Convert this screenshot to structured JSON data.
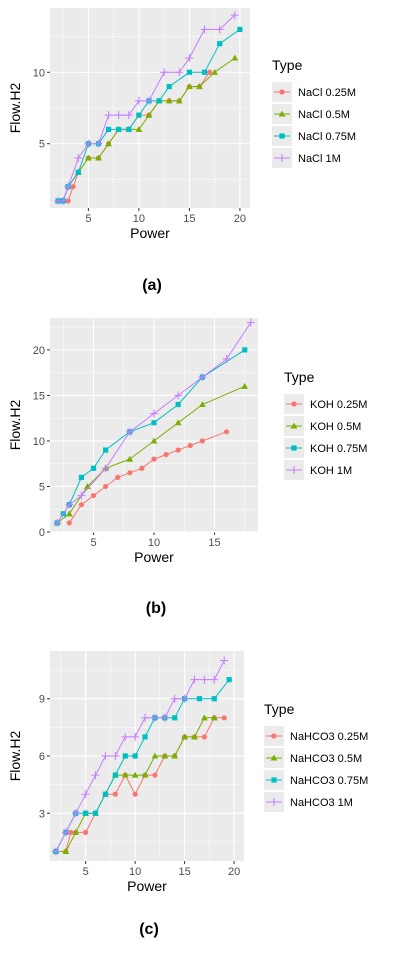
{
  "chart_data": [
    {
      "type": "line",
      "caption": "(a)",
      "xlabel": "Power",
      "ylabel": "Flow.H2",
      "legend_title": "Type",
      "legend_position": "right",
      "xlim": [
        1.2,
        21
      ],
      "ylim": [
        0.5,
        14.5
      ],
      "xticks": [
        5,
        10,
        15,
        20
      ],
      "yticks": [
        5,
        10
      ],
      "series": [
        {
          "name": "NaCl 0.25M",
          "color": "#F8766D",
          "marker": "circle",
          "x": [
            2,
            2.5,
            3,
            3.5,
            4,
            5,
            6,
            7,
            8,
            9,
            10,
            11,
            12,
            13,
            14,
            15,
            16,
            17
          ],
          "y": [
            1,
            1,
            1,
            2,
            3,
            4,
            4,
            5,
            6,
            6,
            7,
            7,
            8,
            8,
            8,
            9,
            9,
            10
          ]
        },
        {
          "name": "NaCl 0.5M",
          "color": "#7CAE00",
          "marker": "triangle",
          "x": [
            2,
            2.5,
            3,
            4,
            5,
            6,
            7,
            8,
            9,
            10,
            11,
            12,
            13,
            14,
            15,
            16,
            17.5,
            19.5
          ],
          "y": [
            1,
            1,
            2,
            3,
            4,
            4,
            5,
            6,
            6,
            6,
            7,
            8,
            8,
            8,
            9,
            9,
            10,
            11
          ]
        },
        {
          "name": "NaCl 0.75M",
          "color": "#00BFC4",
          "marker": "square",
          "x": [
            2,
            2.5,
            3,
            4,
            5,
            6,
            7,
            8,
            9,
            10,
            11,
            12,
            13,
            15,
            16.5,
            18,
            20
          ],
          "y": [
            1,
            1,
            2,
            3,
            5,
            5,
            6,
            6,
            6,
            7,
            8,
            8,
            9,
            10,
            10,
            12,
            13
          ]
        },
        {
          "name": "NaCl 1M",
          "color": "#C77CFF",
          "marker": "plus",
          "x": [
            2,
            2.5,
            3,
            4,
            5,
            6,
            7,
            8,
            9,
            10,
            11,
            12.5,
            14,
            15,
            16.5,
            18,
            19.5
          ],
          "y": [
            1,
            1,
            2,
            4,
            5,
            5,
            7,
            7,
            7,
            8,
            8,
            10,
            10,
            11,
            13,
            13,
            14
          ]
        }
      ]
    },
    {
      "type": "line",
      "caption": "(b)",
      "xlabel": "Power",
      "ylabel": "Flow.H2",
      "legend_title": "Type",
      "legend_position": "right",
      "xlim": [
        1.4,
        18.6
      ],
      "ylim": [
        0,
        23.5
      ],
      "xticks": [
        5,
        10,
        15
      ],
      "yticks": [
        0,
        5,
        10,
        15,
        20
      ],
      "series": [
        {
          "name": "KOH 0.25M",
          "color": "#F8766D",
          "marker": "circle",
          "x": [
            3,
            4,
            5,
            6,
            7,
            8,
            9,
            10,
            11,
            12,
            13,
            14,
            16
          ],
          "y": [
            1,
            3,
            4,
            5,
            6,
            6.5,
            7,
            8,
            8.5,
            9,
            9.5,
            10,
            11
          ]
        },
        {
          "name": "KOH 0.5M",
          "color": "#7CAE00",
          "marker": "triangle",
          "x": [
            2,
            3,
            4.5,
            6,
            8,
            10,
            12,
            14,
            17.5
          ],
          "y": [
            1,
            2,
            5,
            7,
            8,
            10,
            12,
            14,
            16
          ]
        },
        {
          "name": "KOH 0.75M",
          "color": "#00BFC4",
          "marker": "square",
          "x": [
            2,
            2.5,
            3,
            4,
            5,
            6,
            8,
            10,
            12,
            14,
            17.5
          ],
          "y": [
            1,
            2,
            3,
            6,
            7,
            9,
            11,
            12,
            14,
            17,
            20
          ]
        },
        {
          "name": "KOH 1M",
          "color": "#C77CFF",
          "marker": "plus",
          "x": [
            2,
            3,
            4,
            6,
            8,
            10,
            12,
            14,
            16,
            18
          ],
          "y": [
            1,
            3,
            4,
            7,
            11,
            13,
            15,
            17,
            19,
            23
          ]
        }
      ]
    },
    {
      "type": "line",
      "caption": "(c)",
      "xlabel": "Power",
      "ylabel": "Flow.H2",
      "legend_title": "Type",
      "legend_position": "right",
      "xlim": [
        1.4,
        21
      ],
      "ylim": [
        0.5,
        11.5
      ],
      "xticks": [
        5,
        10,
        15,
        20
      ],
      "yticks": [
        3,
        6,
        9
      ],
      "series": [
        {
          "name": "NaHCO3 0.25M",
          "color": "#F8766D",
          "marker": "circle",
          "x": [
            2,
            3,
            3.5,
            4,
            5,
            6,
            7,
            8,
            9,
            10,
            11,
            12,
            13,
            14,
            15,
            16,
            17,
            18,
            19
          ],
          "y": [
            1,
            1,
            2,
            2,
            2,
            3,
            4,
            4,
            5,
            4,
            5,
            5,
            6,
            6,
            7,
            7,
            7,
            8,
            8
          ]
        },
        {
          "name": "NaHCO3 0.5M",
          "color": "#7CAE00",
          "marker": "triangle",
          "x": [
            2,
            3,
            4,
            5,
            6,
            7,
            8,
            9,
            10,
            11,
            12,
            13,
            14,
            15,
            16,
            17,
            18
          ],
          "y": [
            1,
            1,
            2,
            3,
            3,
            4,
            5,
            5,
            5,
            5,
            6,
            6,
            6,
            7,
            7,
            8,
            8
          ]
        },
        {
          "name": "NaHCO3 0.75M",
          "color": "#00BFC4",
          "marker": "square",
          "x": [
            2,
            3,
            4,
            5,
            6,
            7,
            8,
            9,
            10,
            11,
            12,
            13,
            14,
            15,
            16.5,
            18,
            19.5
          ],
          "y": [
            1,
            2,
            3,
            3,
            3,
            4,
            5,
            6,
            6,
            7,
            8,
            8,
            8,
            9,
            9,
            9,
            10
          ]
        },
        {
          "name": "NaHCO3 1M",
          "color": "#C77CFF",
          "marker": "plus",
          "x": [
            2,
            3,
            4,
            5,
            6,
            7,
            8,
            9,
            10,
            11,
            12,
            13,
            14,
            15,
            16,
            17,
            18,
            19
          ],
          "y": [
            1,
            2,
            3,
            4,
            5,
            6,
            6,
            7,
            7,
            8,
            8,
            8,
            9,
            9,
            10,
            10,
            10,
            11
          ]
        }
      ]
    }
  ]
}
